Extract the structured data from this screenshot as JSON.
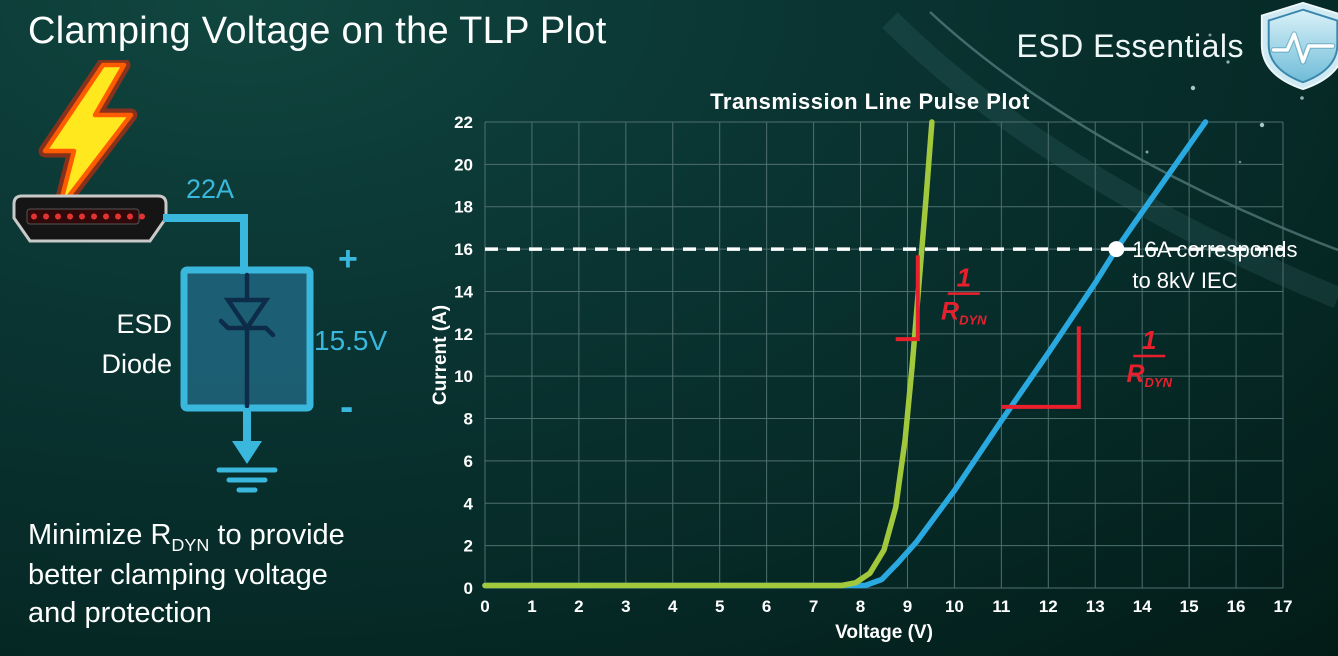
{
  "slide": {
    "title": "Clamping Voltage on the TLP Plot",
    "brand": "ESD Essentials"
  },
  "diagram": {
    "surge_current": "22A",
    "device_line1": "ESD",
    "device_line2": "Diode",
    "plus": "+",
    "clamp_voltage": "15.5V",
    "minus": "-",
    "accent_color": "#3ab7dc",
    "bolt_fill": "#ffe81e",
    "bolt_glow": "#ff2600"
  },
  "footer": {
    "pre": "Minimize R",
    "sub": "DYN",
    "post": " to provide",
    "line2": "better clamping voltage",
    "line3": "and protection"
  },
  "chart_data": {
    "type": "line",
    "title": "Transmission Line Pulse Plot",
    "xlabel": "Voltage (V)",
    "ylabel": "Current (A)",
    "xlim": [
      0,
      17
    ],
    "ylim": [
      0,
      22
    ],
    "xticks": [
      0,
      1,
      2,
      3,
      4,
      5,
      6,
      7,
      8,
      9,
      10,
      11,
      12,
      13,
      14,
      15,
      16,
      17
    ],
    "yticks": [
      0,
      2,
      4,
      6,
      8,
      10,
      12,
      14,
      16,
      18,
      20,
      22
    ],
    "grid": true,
    "legend": "none",
    "colors": {
      "grid": "#4e706f",
      "axis_text": "#ffffff",
      "reference": "#ffffff",
      "annotation": "#e8202e"
    },
    "series": [
      {
        "name": "esd-diode-high-rdyn-blue",
        "color": "#2aa9e0",
        "points": [
          [
            0,
            0.12
          ],
          [
            8.1,
            0.12
          ],
          [
            8.45,
            0.4
          ],
          [
            8.8,
            1.2
          ],
          [
            9.2,
            2.2
          ],
          [
            10,
            4.6
          ],
          [
            11,
            7.9
          ],
          [
            12,
            11.1
          ],
          [
            13,
            14.4
          ],
          [
            13.45,
            16
          ],
          [
            14,
            17.75
          ],
          [
            15,
            20.9
          ],
          [
            15.35,
            22
          ]
        ]
      },
      {
        "name": "esd-diode-low-rdyn-green",
        "color": "#a2c93c",
        "points": [
          [
            0,
            0.12
          ],
          [
            7.6,
            0.12
          ],
          [
            7.9,
            0.25
          ],
          [
            8.2,
            0.7
          ],
          [
            8.5,
            1.8
          ],
          [
            8.75,
            3.8
          ],
          [
            8.95,
            7
          ],
          [
            9.1,
            10.5
          ],
          [
            9.25,
            14.5
          ],
          [
            9.4,
            18.5
          ],
          [
            9.52,
            22
          ]
        ]
      }
    ],
    "reference_line": {
      "y": 16,
      "style": "dashed"
    },
    "marker": {
      "x": 13.45,
      "y": 16,
      "label_lines": [
        "16A corresponds",
        "to 8kV IEC"
      ]
    },
    "slope_annotations": [
      {
        "polyline": [
          [
            8.75,
            11.75
          ],
          [
            9.22,
            11.75
          ],
          [
            9.22,
            15.7
          ]
        ],
        "fraction_at": {
          "x": 10.2,
          "y": 13.9
        }
      },
      {
        "polyline": [
          [
            11.0,
            8.55
          ],
          [
            12.65,
            8.55
          ],
          [
            12.65,
            12.35
          ]
        ],
        "fraction_at": {
          "x": 14.15,
          "y": 10.95
        }
      }
    ],
    "fraction_label": {
      "numerator": "1",
      "denominator": "R",
      "denominator_sub": "DYN"
    }
  }
}
